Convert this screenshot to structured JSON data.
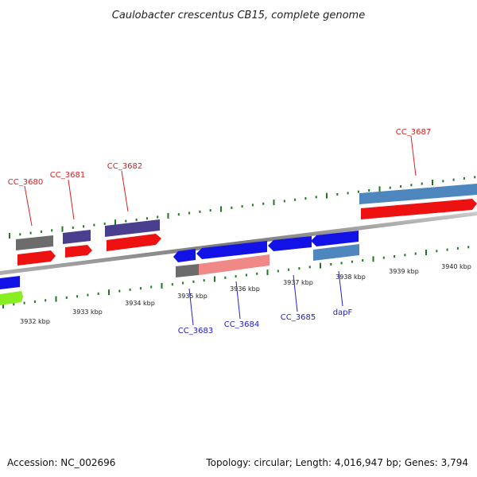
{
  "title": "Caulobacter crescentus CB15, complete genome",
  "footer": {
    "accession": "Accession: NC_002696",
    "info": "Topology: circular; Length: 4,016,947 bp; Genes: 3,794"
  },
  "colors": {
    "backbone": "#888888",
    "tick": "#1f7a1f",
    "label_forward": "#d62020",
    "label_reverse": "#2020c8",
    "red": "#ee1111",
    "purple": "#4a3f8f",
    "grey": "#6c6c6c",
    "steelblue": "#4d87be",
    "blue": "#1212e6",
    "pink": "#f08888",
    "green": "#88ee22"
  },
  "scale": {
    "labels": [
      "3932 kbp",
      "3933 kbp",
      "3934 kbp",
      "3935 kbp",
      "3936 kbp",
      "3937 kbp",
      "3938 kbp",
      "3939 kbp",
      "3940 kbp"
    ]
  },
  "genes": {
    "forward": [
      "CC_3680",
      "CC_3681",
      "CC_3682",
      "CC_3687"
    ],
    "reverse": [
      "CC_3683",
      "CC_3684",
      "CC_3685",
      "dapF"
    ]
  }
}
